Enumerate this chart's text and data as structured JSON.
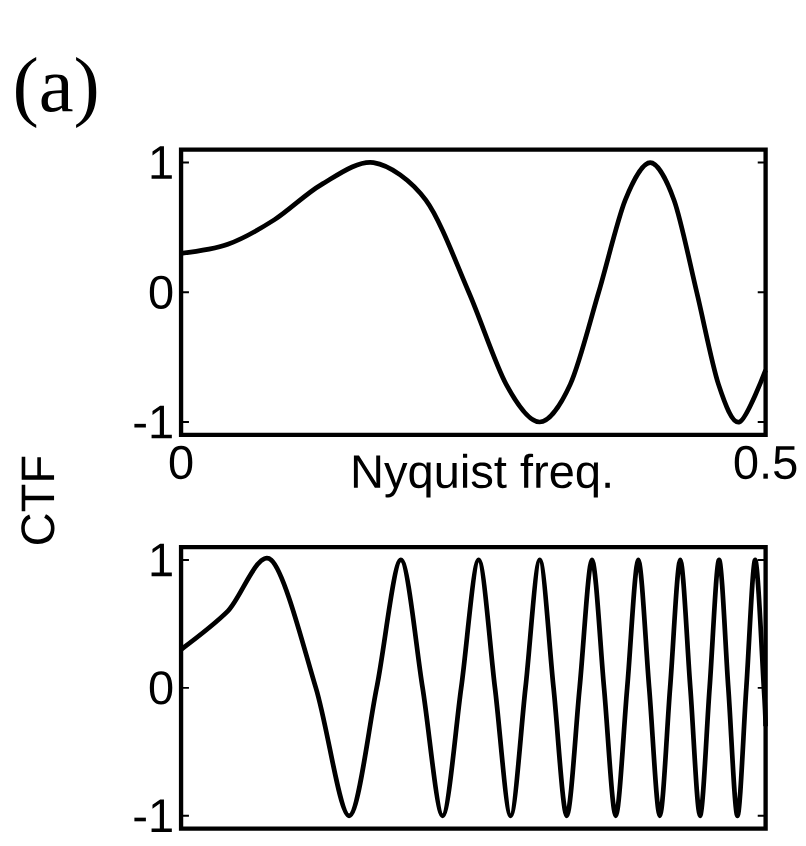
{
  "chart_data": [
    {
      "type": "line",
      "title": "(a)",
      "xlabel": "Nyquist freq.",
      "ylabel": "CTF",
      "color": "#000000",
      "x": [
        0,
        0.04,
        0.08,
        0.12,
        0.1646,
        0.2094,
        0.2461,
        0.2781,
        0.3067,
        0.3329,
        0.3572,
        0.3799,
        0.4013,
        0.4217,
        0.4411,
        0.4597,
        0.4776,
        0.5
      ],
      "values": [
        0.3,
        0.37,
        0.56,
        0.83,
        1,
        0.71,
        0,
        -0.71,
        -1,
        -0.71,
        0,
        0.71,
        1,
        0.71,
        0,
        -0.71,
        -1,
        -0.6
      ],
      "xlim": [
        0,
        0.5
      ],
      "ylim": [
        -1.1,
        1.1
      ],
      "xticks": [
        0,
        0.5
      ],
      "yticks": [
        -1,
        0,
        1
      ]
    },
    {
      "type": "line",
      "color": "#000000",
      "x": [
        0,
        0.04,
        0.0771,
        0.1153,
        0.1437,
        0.1673,
        0.188,
        0.2066,
        0.2237,
        0.2396,
        0.2545,
        0.2685,
        0.2819,
        0.2946,
        0.3068,
        0.3186,
        0.3299,
        0.3409,
        0.3515,
        0.3618,
        0.3718,
        0.3816,
        0.3911,
        0.4004,
        0.4095,
        0.4183,
        0.427,
        0.4356,
        0.4439,
        0.4521,
        0.4602,
        0.4681,
        0.4759,
        0.4835,
        0.4911,
        0.4985,
        0.5
      ],
      "values": [
        0.3,
        0.6,
        1,
        0,
        -1,
        0,
        1,
        0,
        -1,
        0,
        1,
        0,
        -1,
        0,
        1,
        0,
        -1,
        0,
        1,
        0,
        -1,
        0,
        1,
        0,
        -1,
        0,
        1,
        0,
        -1,
        0,
        1,
        0,
        -1,
        0,
        1,
        0,
        -0.3
      ],
      "xlim": [
        0,
        0.5
      ],
      "ylim": [
        -1.1,
        1.1
      ],
      "xticks": [
        0,
        0.5
      ],
      "yticks": [
        -1,
        0,
        1
      ],
      "tick_labels": "y"
    }
  ]
}
